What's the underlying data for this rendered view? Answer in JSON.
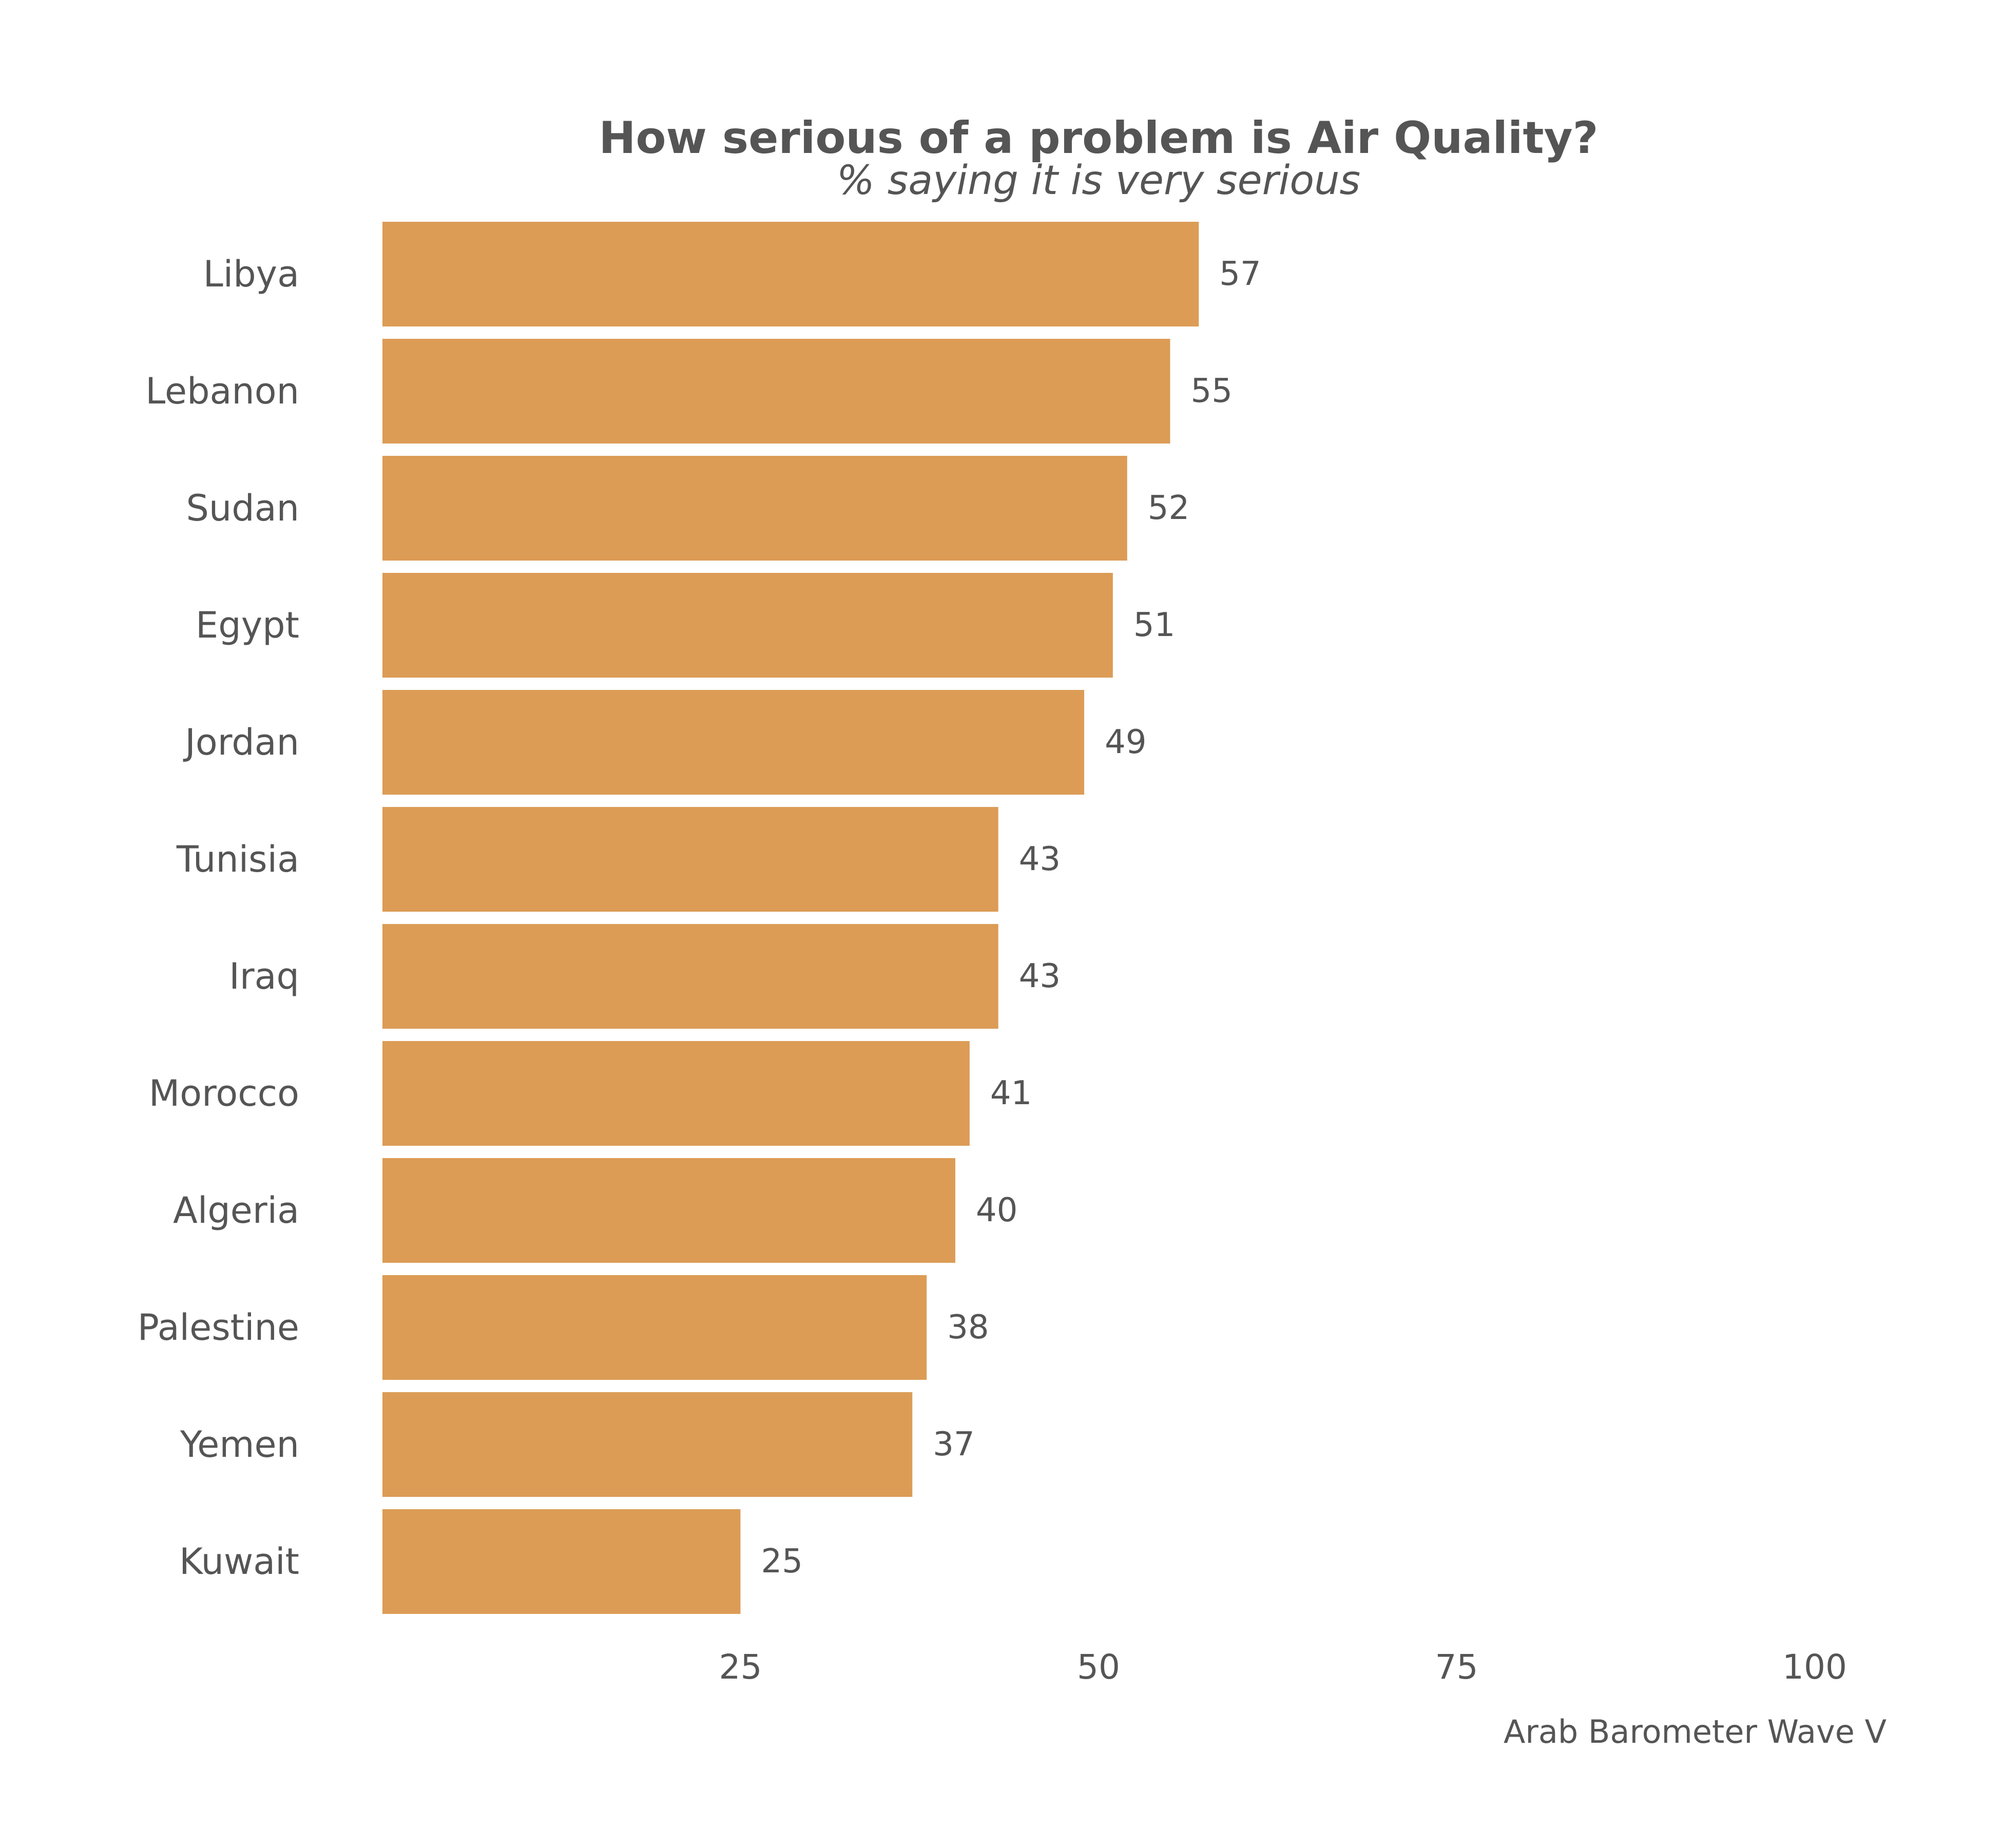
{
  "chart_data": {
    "type": "bar",
    "orientation": "horizontal",
    "title": "How serious of a problem is Air Quality?",
    "subtitle": "% saying it is very serious",
    "caption": "Arab Barometer Wave V",
    "categories": [
      "Libya",
      "Lebanon",
      "Sudan",
      "Egypt",
      "Jordan",
      "Tunisia",
      "Iraq",
      "Morocco",
      "Algeria",
      "Palestine",
      "Yemen",
      "Kuwait"
    ],
    "values": [
      57,
      55,
      52,
      51,
      49,
      43,
      43,
      41,
      40,
      38,
      37,
      25
    ],
    "xlim": [
      0,
      100
    ],
    "xticks": [
      25,
      50,
      75,
      100
    ],
    "grid": false,
    "legend": "none",
    "bar_color": "#DC9C56",
    "text_color": "#555555"
  }
}
